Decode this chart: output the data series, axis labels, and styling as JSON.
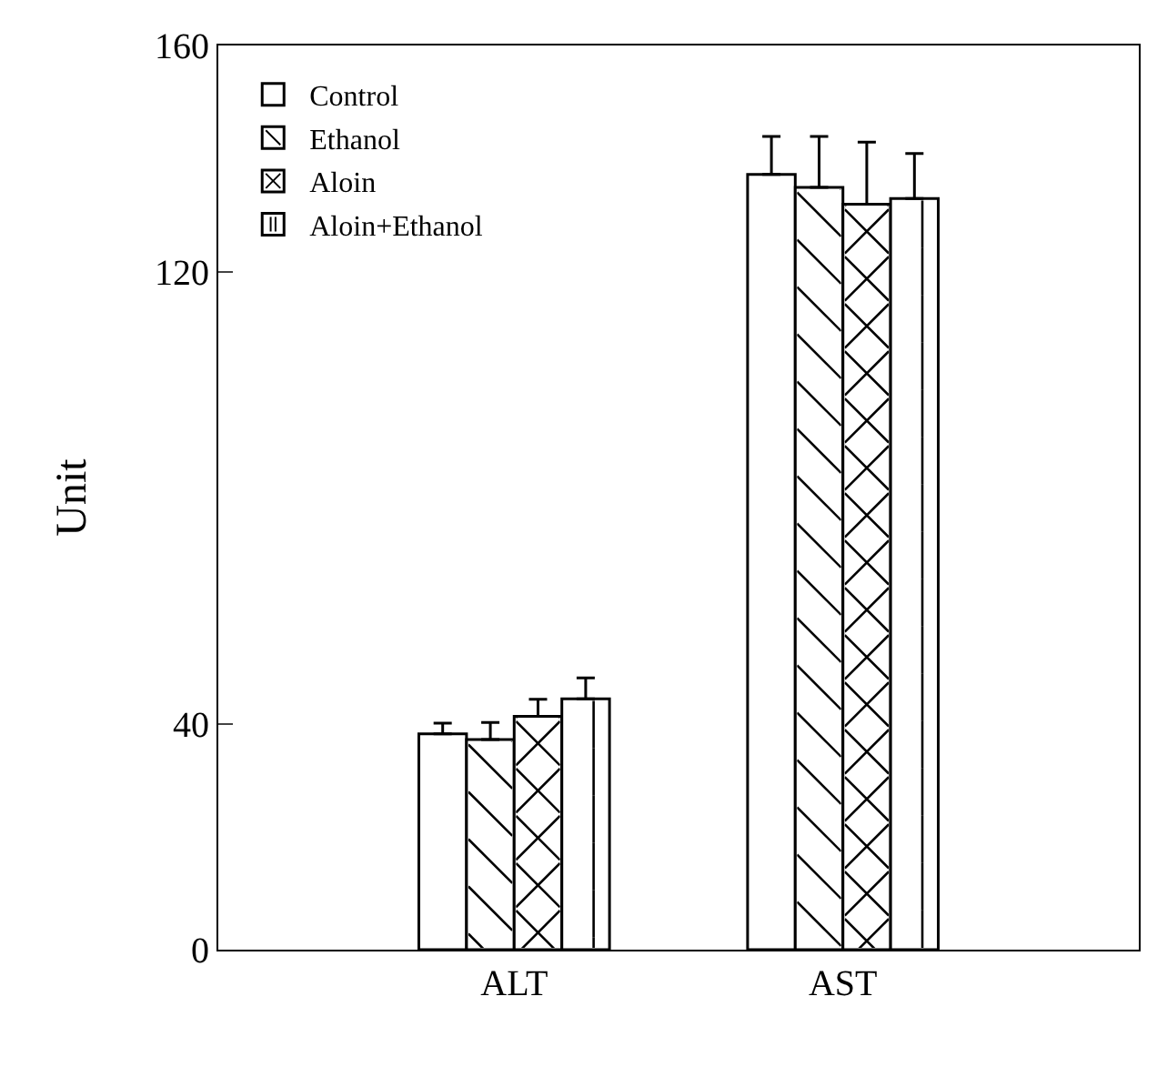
{
  "chart_data": {
    "type": "bar",
    "ylabel": "Unit",
    "categories": [
      "ALT",
      "AST"
    ],
    "series": [
      {
        "name": "Control",
        "color": "#000000",
        "values": [
          38.2,
          137.2
        ],
        "errors": [
          1.9,
          6.7
        ]
      },
      {
        "name": "Ethanol",
        "color": "#000000",
        "values": [
          37.2,
          134.9
        ],
        "errors": [
          3,
          9
        ]
      },
      {
        "name": "Aloin",
        "color": "#000000",
        "values": [
          41.3,
          131.9
        ],
        "errors": [
          3,
          11
        ]
      },
      {
        "name": "Aloin+Ethanol",
        "color": "#000000",
        "values": [
          44.4,
          132.9
        ],
        "errors": [
          3.7,
          8
        ]
      }
    ],
    "ylim": [
      0,
      160
    ],
    "yticks": [
      0,
      40,
      120,
      160
    ],
    "grid": false,
    "legend": "top left"
  }
}
